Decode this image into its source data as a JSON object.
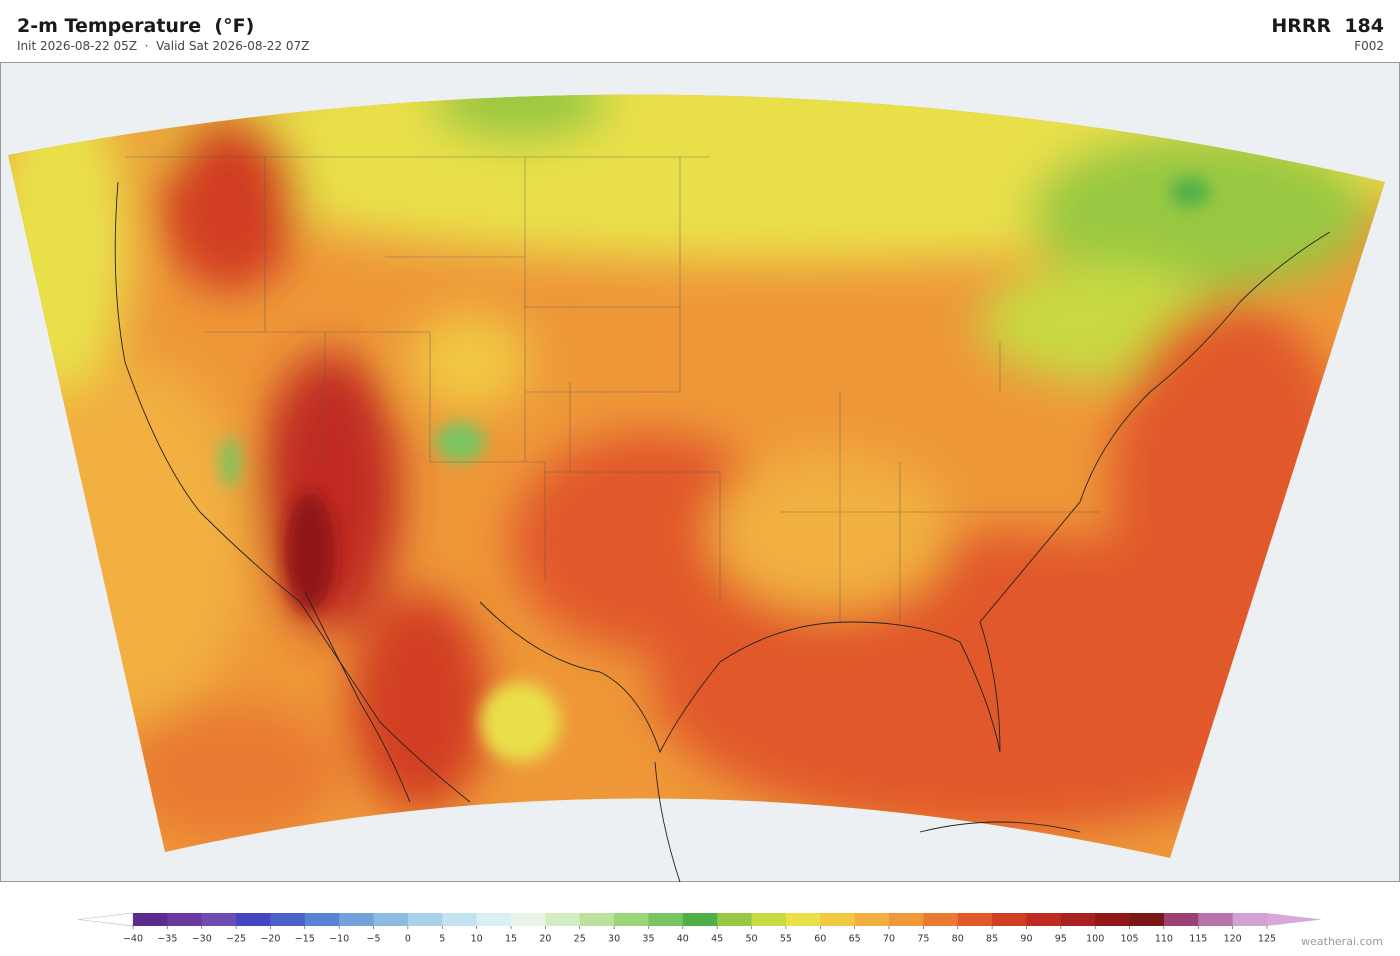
{
  "header": {
    "title": "2-m Temperature  (°F)",
    "subtitle": "Init 2026-08-22 05Z  ·  Valid Sat 2026-08-22 07Z",
    "model": "HRRR  184",
    "forecast_hour": "F002"
  },
  "colorbar": {
    "ticks": [
      {
        "value": -40,
        "label": "−40"
      },
      {
        "value": -35,
        "label": "−35"
      },
      {
        "value": -30,
        "label": "−30"
      },
      {
        "value": -25,
        "label": "−25"
      },
      {
        "value": -20,
        "label": "−20"
      },
      {
        "value": -15,
        "label": "−15"
      },
      {
        "value": -10,
        "label": "−10"
      },
      {
        "value": -5,
        "label": "−5"
      },
      0,
      5,
      10,
      15,
      20,
      25,
      30,
      35,
      40,
      45,
      50,
      55,
      60,
      65,
      70,
      75,
      80,
      85,
      90,
      95,
      100,
      105,
      110,
      115,
      120,
      125
    ],
    "colors": [
      "#5b2c8e",
      "#6b3a9f",
      "#6c4db2",
      "#4647bf",
      "#4a62c9",
      "#5a82d2",
      "#72a2da",
      "#8cbae0",
      "#a9d2e8",
      "#c2e3ef",
      "#d9eff2",
      "#e6f5e4",
      "#d2edc1",
      "#bbe19a",
      "#9ad57a",
      "#79c562",
      "#4fb049",
      "#98c843",
      "#c8d942",
      "#e9e04a",
      "#f1c842",
      "#f1b040",
      "#ee9839",
      "#e97a31",
      "#e1592a",
      "#d13d22",
      "#c02a20",
      "#a82020",
      "#901818",
      "#7a1717",
      "#9b4273",
      "#b872a9",
      "#d2a2d2"
    ],
    "under_color": "#ffffff",
    "over_color": "#d8a8d8"
  },
  "watermark": "weatherai.com"
}
